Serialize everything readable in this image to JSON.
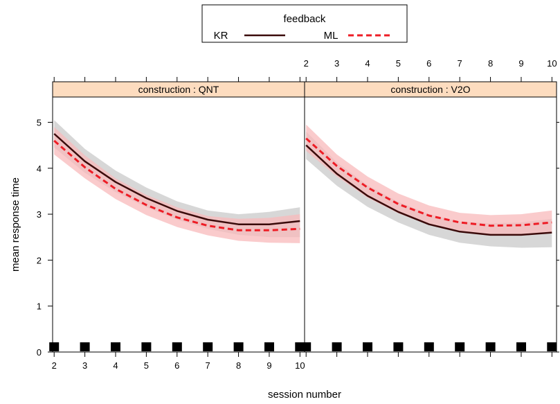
{
  "chart_data": {
    "type": "line",
    "xlabel": "session number",
    "ylabel": "mean response time",
    "xlim": [
      1.95,
      10.15
    ],
    "ylim": [
      0,
      5.55
    ],
    "x_ticks": [
      2,
      3,
      4,
      5,
      6,
      7,
      8,
      9,
      10
    ],
    "y_ticks": [
      0,
      1,
      2,
      3,
      4,
      5
    ],
    "legend": {
      "title": "feedback",
      "placement": "top",
      "entries": [
        {
          "label": "KR",
          "color": "#3a0a0a",
          "dash": "solid"
        },
        {
          "label": "ML",
          "color": "#ee1c25",
          "dash": "dashed"
        }
      ]
    },
    "band_colors": {
      "KR": "#d3d3d3",
      "ML": "#f8b9bb"
    },
    "strip_color": "#fddcbf",
    "rug_x": [
      2,
      3,
      4,
      5,
      6,
      7,
      8,
      9,
      10
    ],
    "panels": [
      {
        "strip_label": "construction : QNT",
        "x": [
          2,
          3,
          4,
          5,
          6,
          7,
          8,
          9,
          10
        ],
        "series": [
          {
            "name": "KR",
            "values": [
              4.75,
              4.15,
              3.7,
              3.35,
              3.07,
              2.88,
              2.78,
              2.78,
              2.85
            ],
            "lower": [
              4.45,
              3.9,
              3.48,
              3.15,
              2.88,
              2.68,
              2.55,
              2.5,
              2.5
            ],
            "upper": [
              5.05,
              4.42,
              3.95,
              3.58,
              3.28,
              3.08,
              3.0,
              3.05,
              3.15
            ]
          },
          {
            "name": "ML",
            "values": [
              4.6,
              4.02,
              3.55,
              3.2,
              2.93,
              2.75,
              2.65,
              2.65,
              2.68
            ],
            "lower": [
              4.3,
              3.78,
              3.33,
              2.98,
              2.72,
              2.54,
              2.42,
              2.38,
              2.37
            ],
            "upper": [
              4.9,
              4.28,
              3.78,
              3.42,
              3.15,
              2.96,
              2.9,
              2.92,
              3.0
            ]
          }
        ]
      },
      {
        "strip_label": "construction : V2O",
        "x": [
          2,
          3,
          4,
          5,
          6,
          7,
          8,
          9,
          10
        ],
        "series": [
          {
            "name": "KR",
            "values": [
              4.5,
              3.88,
              3.4,
              3.05,
              2.78,
              2.62,
              2.55,
              2.55,
              2.6
            ],
            "lower": [
              4.2,
              3.62,
              3.16,
              2.82,
              2.55,
              2.38,
              2.3,
              2.27,
              2.28
            ],
            "upper": [
              4.8,
              4.13,
              3.63,
              3.27,
              3.0,
              2.84,
              2.8,
              2.82,
              2.9
            ]
          },
          {
            "name": "ML",
            "values": [
              4.65,
              4.05,
              3.58,
              3.22,
              2.97,
              2.82,
              2.75,
              2.76,
              2.82
            ],
            "lower": [
              4.38,
              3.82,
              3.36,
              3.02,
              2.77,
              2.62,
              2.55,
              2.55,
              2.58
            ],
            "upper": [
              4.95,
              4.3,
              3.82,
              3.45,
              3.19,
              3.03,
              2.98,
              3.0,
              3.08
            ]
          }
        ]
      }
    ]
  }
}
